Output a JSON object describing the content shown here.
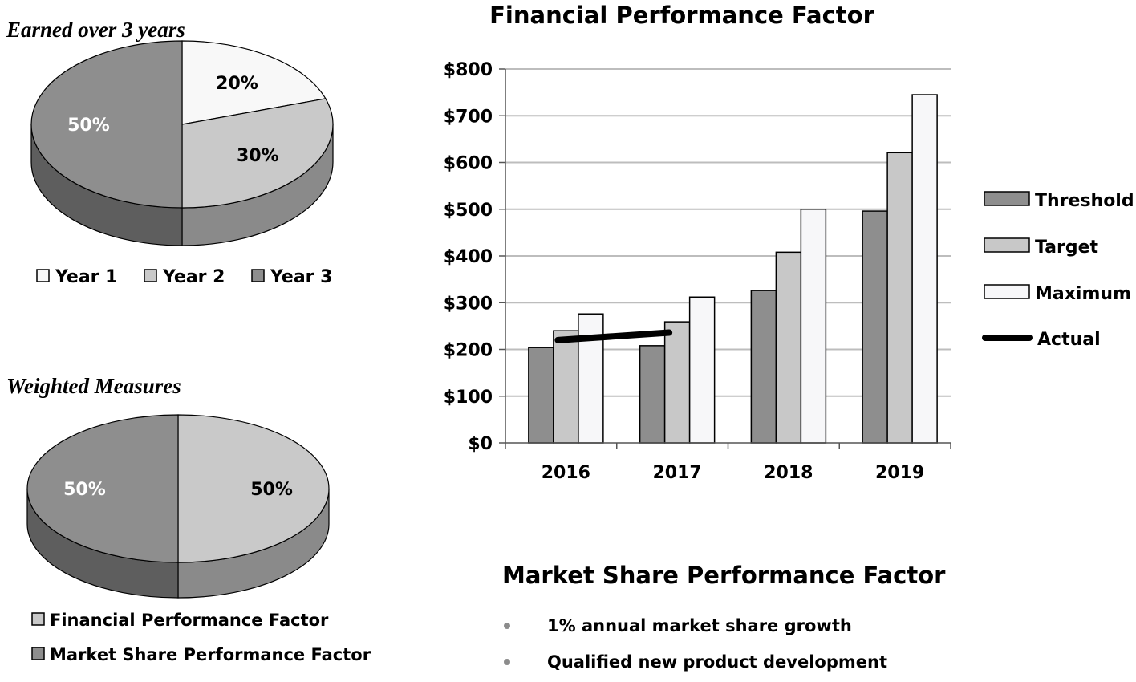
{
  "colors": {
    "threshold": "#8e8e8e",
    "target": "#c8c8c8",
    "maximum": "#f7f7f9",
    "pie_dark": "#8e8e8e",
    "pie_light": "#c9c9c9",
    "pie_white": "#f8f8f8",
    "side_dark": "#5e5e5e",
    "side_light": "#8a8a8a",
    "grid": "#bdbdbd",
    "actual": "#000000"
  },
  "pie1": {
    "title": "Earned over 3 years",
    "legend": [
      {
        "label": "Year 1",
        "color": "#f8f8f8"
      },
      {
        "label": "Year 2",
        "color": "#c9c9c9"
      },
      {
        "label": "Year 3",
        "color": "#8e8e8e"
      }
    ]
  },
  "pie2": {
    "title": "Weighted Measures",
    "legend": [
      {
        "label": "Financial Performance Factor",
        "color": "#c9c9c9"
      },
      {
        "label": "Market Share Performance Factor",
        "color": "#8e8e8e"
      }
    ]
  },
  "market_share": {
    "title": "Market Share Performance Factor",
    "bullets": [
      "1% annual market share growth",
      "Qualified new product development"
    ]
  },
  "chart_data": [
    {
      "type": "pie",
      "title": "Earned over 3 years",
      "categories": [
        "Year 1",
        "Year 2",
        "Year 3"
      ],
      "values": [
        20,
        30,
        50
      ],
      "labels": [
        "20%",
        "30%",
        "50%"
      ],
      "style": "3d"
    },
    {
      "type": "pie",
      "title": "Weighted Measures",
      "categories": [
        "Financial Performance Factor",
        "Market Share Performance Factor"
      ],
      "values": [
        50,
        50
      ],
      "labels": [
        "50%",
        "50%"
      ],
      "style": "3d"
    },
    {
      "type": "bar",
      "title": "Financial Performance Factor",
      "categories": [
        "2016",
        "2017",
        "2018",
        "2019"
      ],
      "series": [
        {
          "name": "Threshold",
          "values": [
            204,
            208,
            326,
            496
          ]
        },
        {
          "name": "Target",
          "values": [
            240,
            259,
            408,
            621
          ]
        },
        {
          "name": "Maximum",
          "values": [
            276,
            312,
            500,
            745
          ]
        }
      ],
      "line_series": {
        "name": "Actual",
        "points": [
          {
            "x": "2016",
            "y": 220
          },
          {
            "x": "2017",
            "y": 236
          }
        ]
      },
      "ylim": [
        0,
        800
      ],
      "yticks": [
        0,
        100,
        200,
        300,
        400,
        500,
        600,
        700,
        800
      ],
      "ytick_labels": [
        "$0",
        "$100",
        "$200",
        "$300",
        "$400",
        "$500",
        "$600",
        "$700",
        "$800"
      ],
      "grid": true,
      "legend": "right"
    }
  ]
}
